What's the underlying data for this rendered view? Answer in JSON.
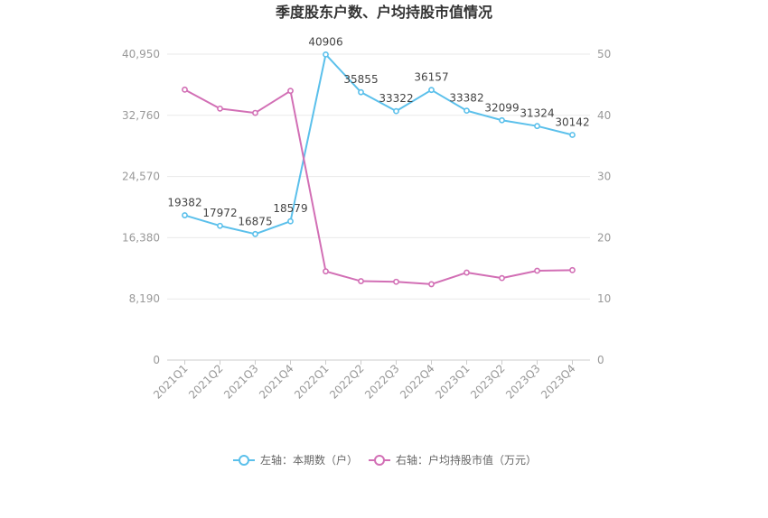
{
  "chart_data": {
    "type": "line",
    "title": "季度股东户数、户均持股市值情况",
    "categories": [
      "2021Q1",
      "2021Q2",
      "2021Q3",
      "2021Q4",
      "2022Q1",
      "2022Q2",
      "2022Q3",
      "2022Q4",
      "2023Q1",
      "2023Q2",
      "2023Q3",
      "2023Q4"
    ],
    "left_axis": {
      "ticks": [
        "0",
        "8,190",
        "16,380",
        "24,570",
        "32,760",
        "40,950"
      ],
      "ylim": [
        0,
        40950
      ]
    },
    "right_axis": {
      "ticks": [
        "0",
        "10",
        "20",
        "30",
        "40",
        "50"
      ],
      "ylim": [
        0,
        50
      ]
    },
    "series": [
      {
        "name": "左轴：本期数（户）",
        "axis": "left",
        "color": "#5bc0eb",
        "values": [
          19382,
          17972,
          16875,
          18579,
          40906,
          35855,
          33322,
          36157,
          33382,
          32099,
          31324,
          30142
        ],
        "labels": [
          "19382",
          "17972",
          "16875",
          "18579",
          "40906",
          "35855",
          "33322",
          "36157",
          "33382",
          "32099",
          "31324",
          "30142"
        ]
      },
      {
        "name": "右轴：户均持股市值（万元）",
        "axis": "right",
        "color": "#d26fb5",
        "values": [
          44.2,
          41.1,
          40.4,
          44.0,
          14.5,
          12.9,
          12.8,
          12.4,
          14.3,
          13.4,
          14.6,
          14.7
        ]
      }
    ],
    "grid": true,
    "legend_position": "bottom"
  }
}
